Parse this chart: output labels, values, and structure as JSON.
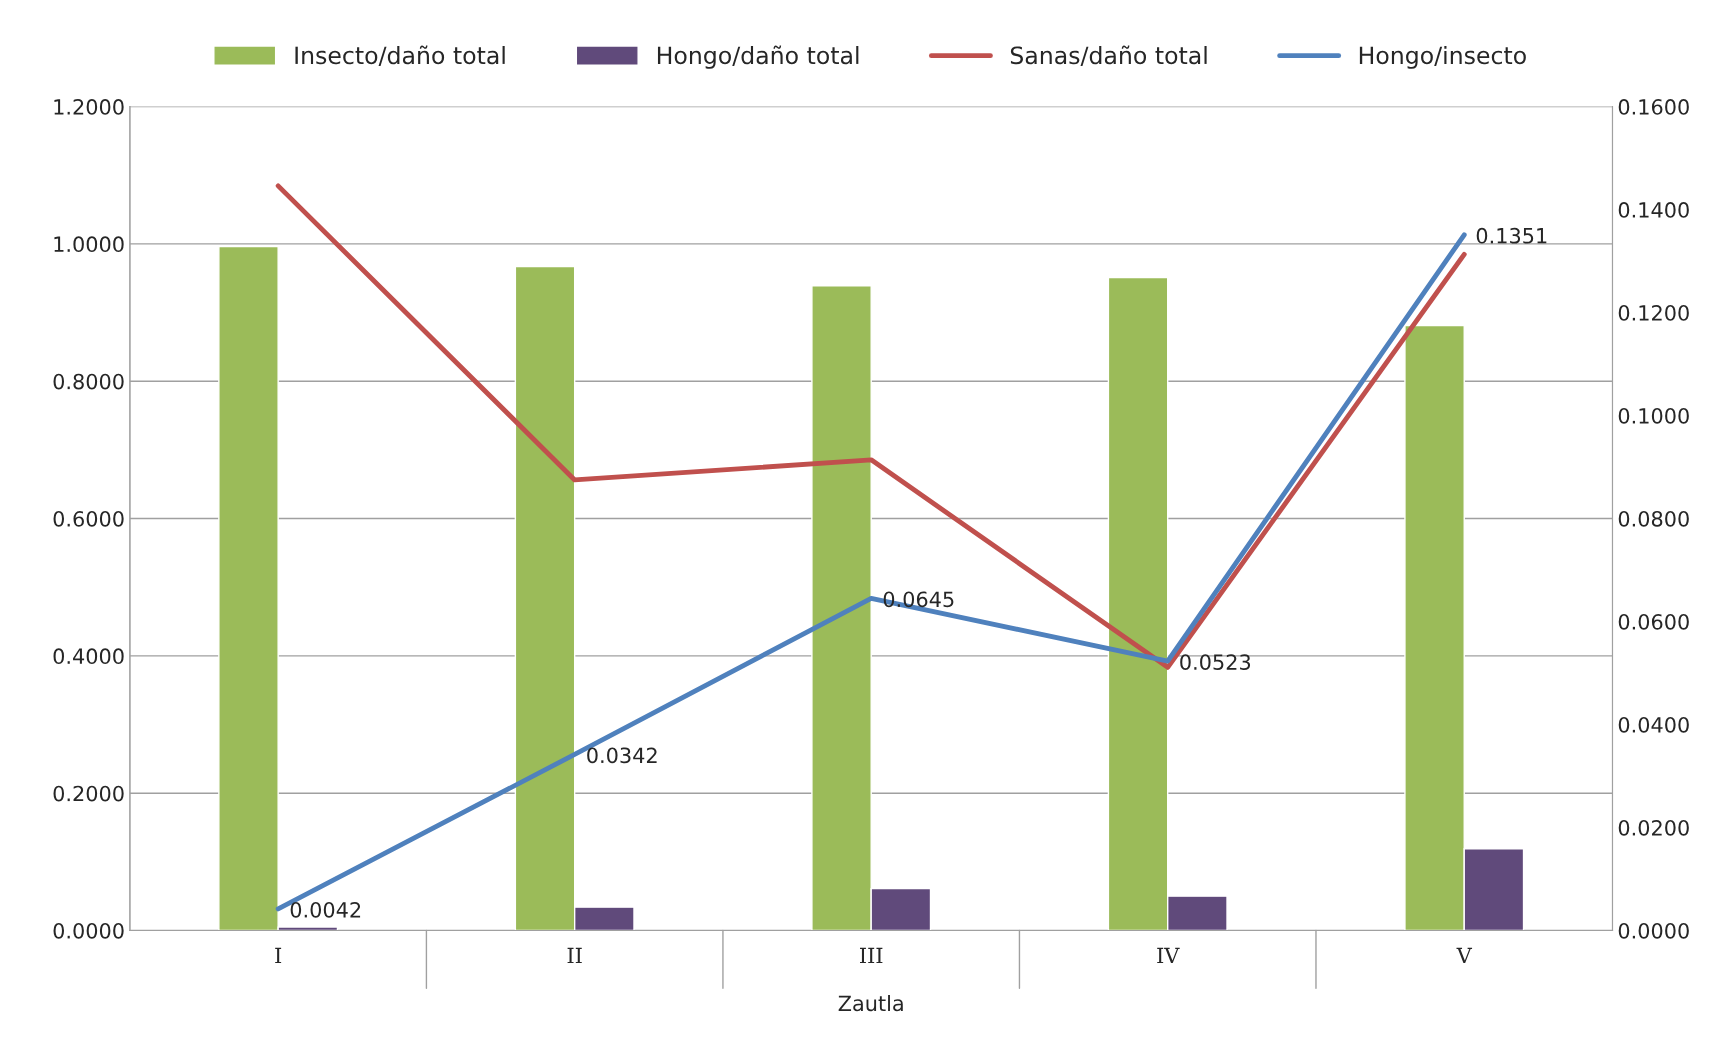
{
  "chart_data": {
    "type": "bar",
    "xlabel": "Zautla",
    "categories": [
      "I",
      "II",
      "III",
      "IV",
      "V"
    ],
    "series": [
      {
        "name": "Insecto/daño total",
        "color": "#9bbb59",
        "values": [
          0.996,
          0.967,
          0.939,
          0.951,
          0.881
        ]
      },
      {
        "name": "Hongo/daño total",
        "color": "#604a7b",
        "values": [
          0.005,
          0.034,
          0.061,
          0.05,
          0.119
        ]
      },
      {
        "name": "Sanas/daño total",
        "color": "#c0504d",
        "type": "line",
        "axis": "y2",
        "values": [
          0.1446,
          0.0875,
          0.0914,
          0.0511,
          0.1313
        ]
      },
      {
        "name": "Hongo/insecto",
        "color": "#4f81bd",
        "type": "line",
        "axis": "y2",
        "values": [
          0.0042,
          0.0342,
          0.0645,
          0.0523,
          0.1351
        ],
        "value_labels": [
          "0.0042",
          "0.0342",
          "0.0645",
          "0.0523",
          "0.1351"
        ]
      }
    ],
    "ylim": [
      0,
      1.2
    ],
    "yticks": [
      {
        "value": 0,
        "label": "0.0000"
      },
      {
        "value": 0.2,
        "label": "0.2000"
      },
      {
        "value": 0.4,
        "label": "0.4000"
      },
      {
        "value": 0.6,
        "label": "0.6000"
      },
      {
        "value": 0.8,
        "label": "0.8000"
      },
      {
        "value": 1.0,
        "label": "1.0000"
      },
      {
        "value": 1.2,
        "label": "1.2000"
      }
    ],
    "y2lim": [
      0,
      0.16
    ],
    "y2ticks": [
      {
        "value": 0,
        "label": "0.0000"
      },
      {
        "value": 0.02,
        "label": "0.0200"
      },
      {
        "value": 0.04,
        "label": "0.0400"
      },
      {
        "value": 0.06,
        "label": "0.0600"
      },
      {
        "value": 0.08,
        "label": "0.0800"
      },
      {
        "value": 0.1,
        "label": "0.1000"
      },
      {
        "value": 0.12,
        "label": "0.1200"
      },
      {
        "value": 0.14,
        "label": "0.1400"
      },
      {
        "value": 0.16,
        "label": "0.1600"
      }
    ],
    "grid": "y",
    "legend": "top",
    "marker": "none",
    "line_style": "solid"
  }
}
